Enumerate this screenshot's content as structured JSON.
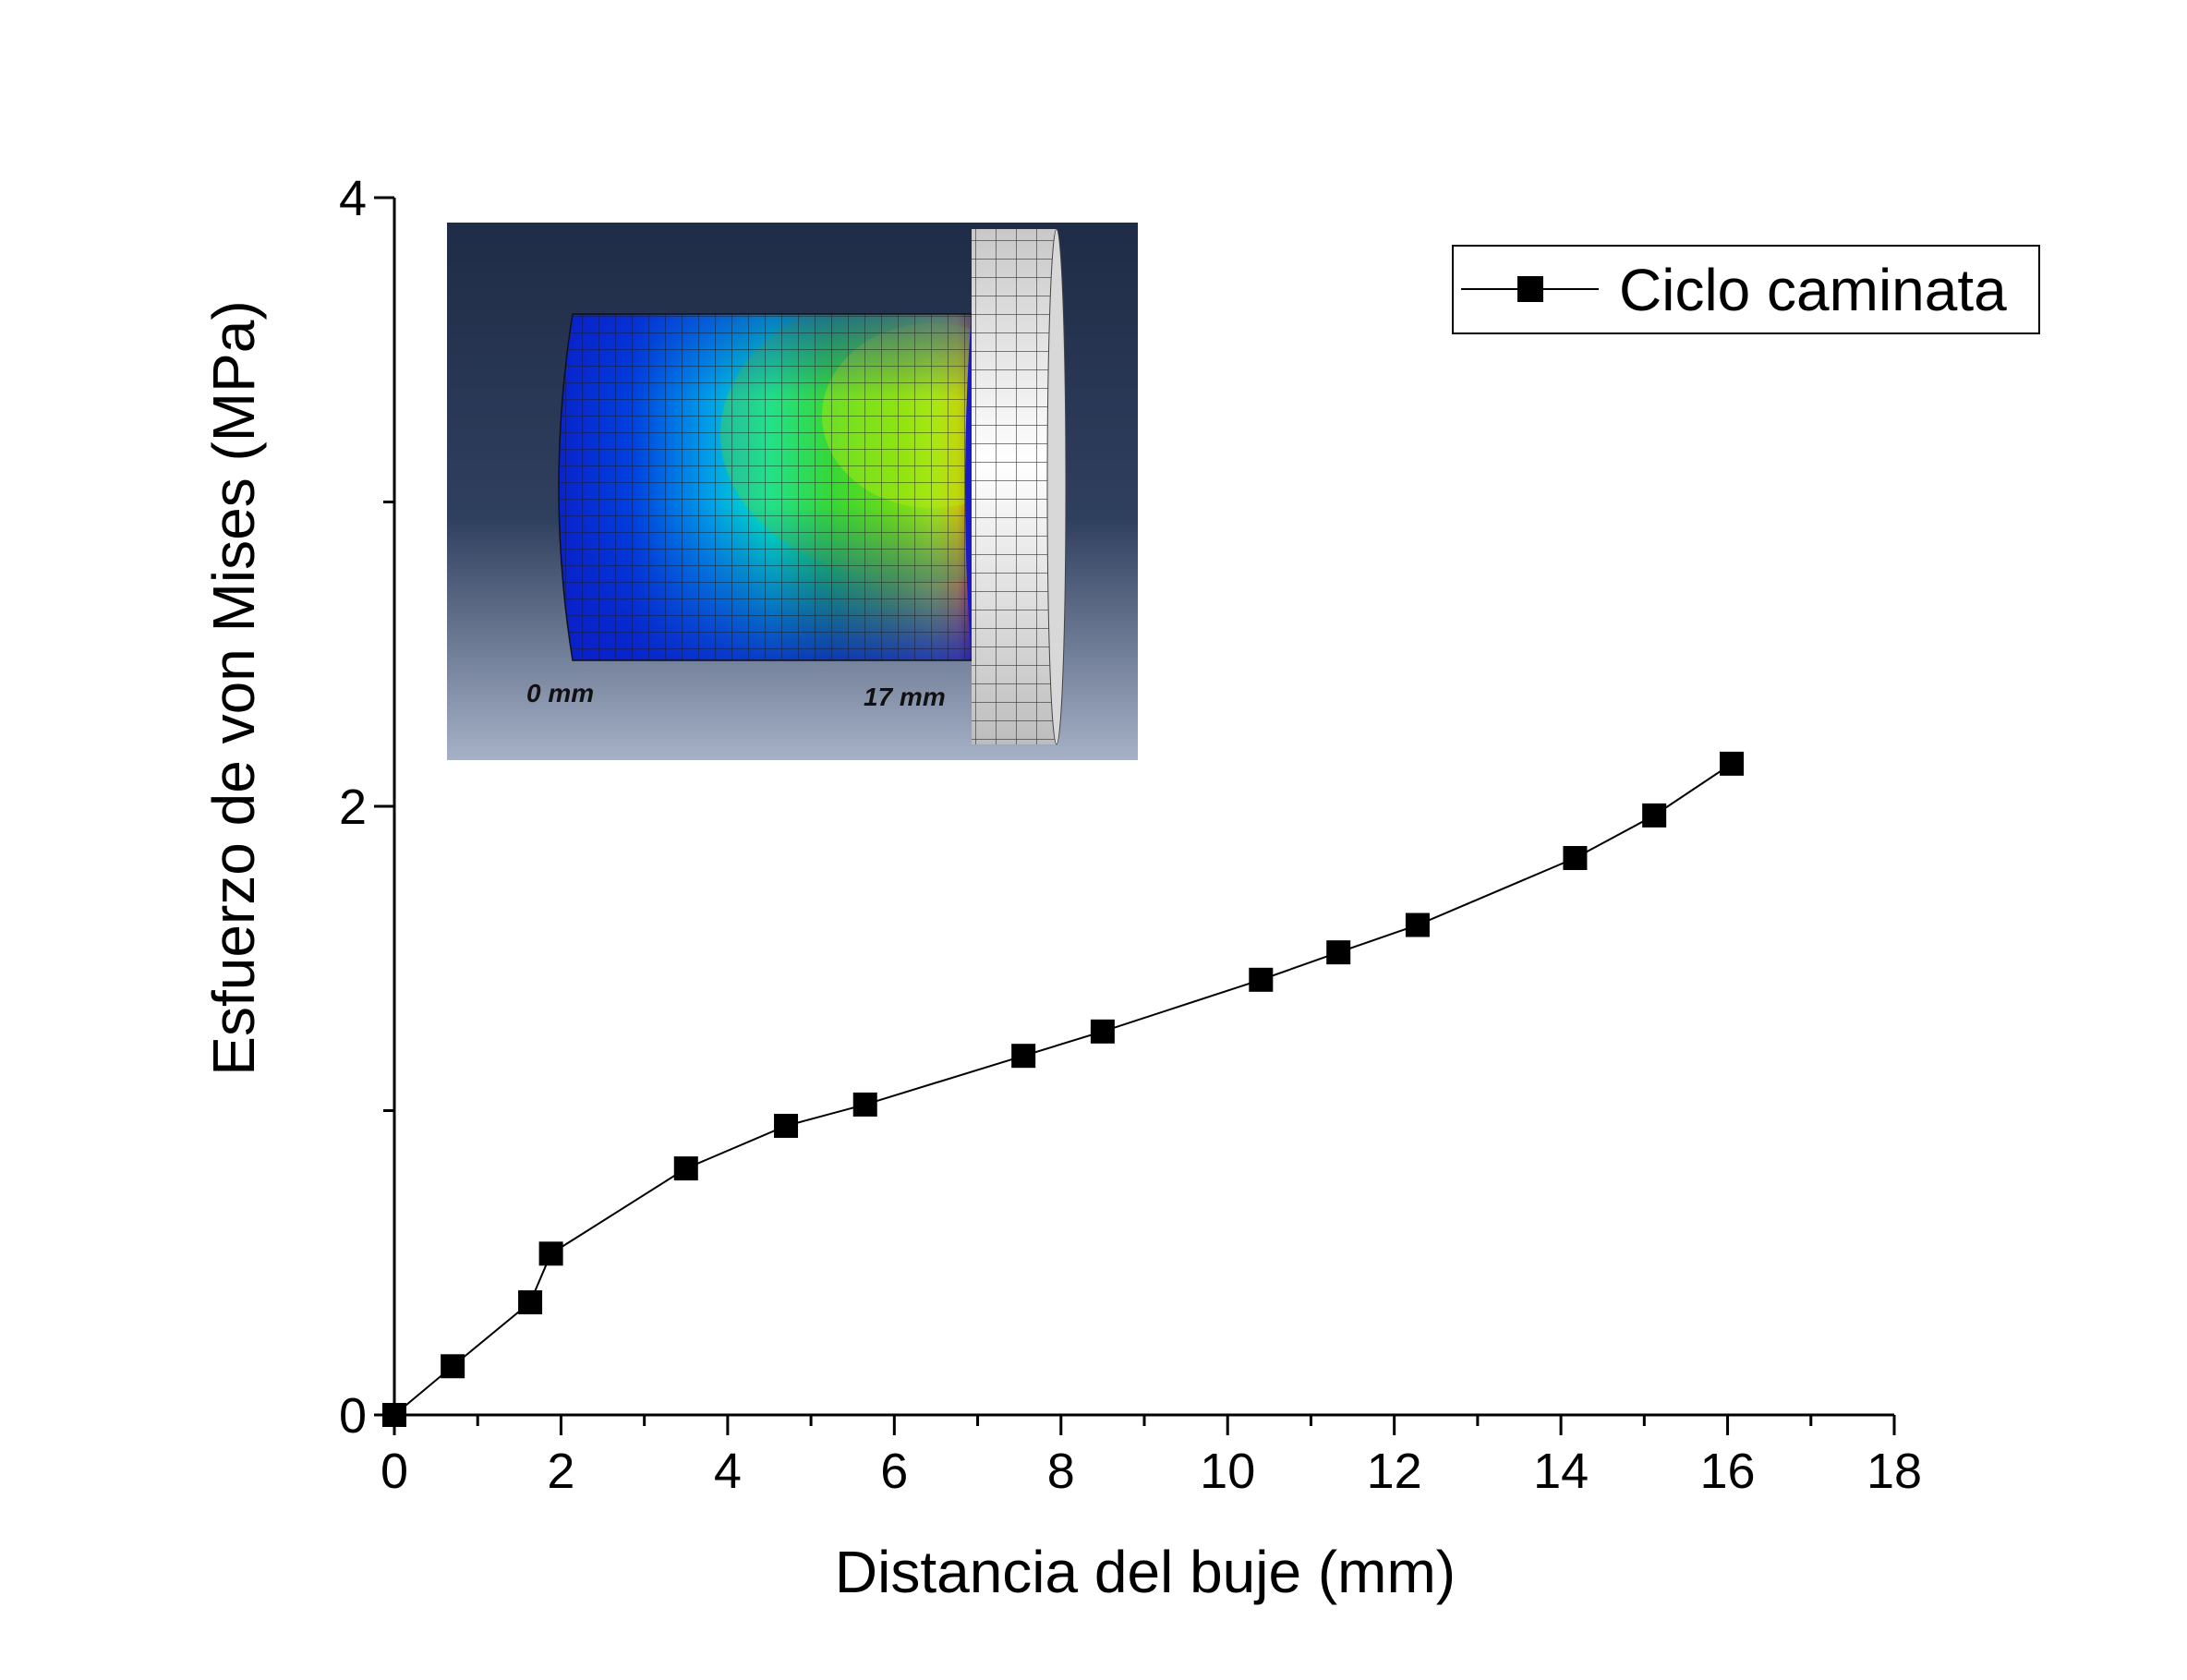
{
  "chart_data": {
    "type": "line",
    "xlabel": "Distancia del buje (mm)",
    "ylabel": "Esfuerzo de von Mises (MPa)",
    "xlim": [
      0,
      18
    ],
    "ylim": [
      0,
      4
    ],
    "x_ticks": [
      0,
      2,
      4,
      6,
      8,
      10,
      12,
      14,
      16,
      18
    ],
    "y_ticks": [
      0,
      2,
      4
    ],
    "grid": false,
    "legend_position": "top-right",
    "series": [
      {
        "name": "Ciclo caminata",
        "color": "#000000",
        "marker": "square",
        "x": [
          0.0,
          0.7,
          1.63,
          1.88,
          3.5,
          4.7,
          5.65,
          7.55,
          8.5,
          10.4,
          11.33,
          12.28,
          14.17,
          15.12,
          16.05
        ],
        "y": [
          0.0,
          0.16,
          0.37,
          0.53,
          0.81,
          0.95,
          1.02,
          1.18,
          1.26,
          1.43,
          1.52,
          1.61,
          1.83,
          1.97,
          2.14
        ]
      }
    ]
  },
  "inset": {
    "label_left": "0 mm",
    "label_right": "17 mm"
  }
}
